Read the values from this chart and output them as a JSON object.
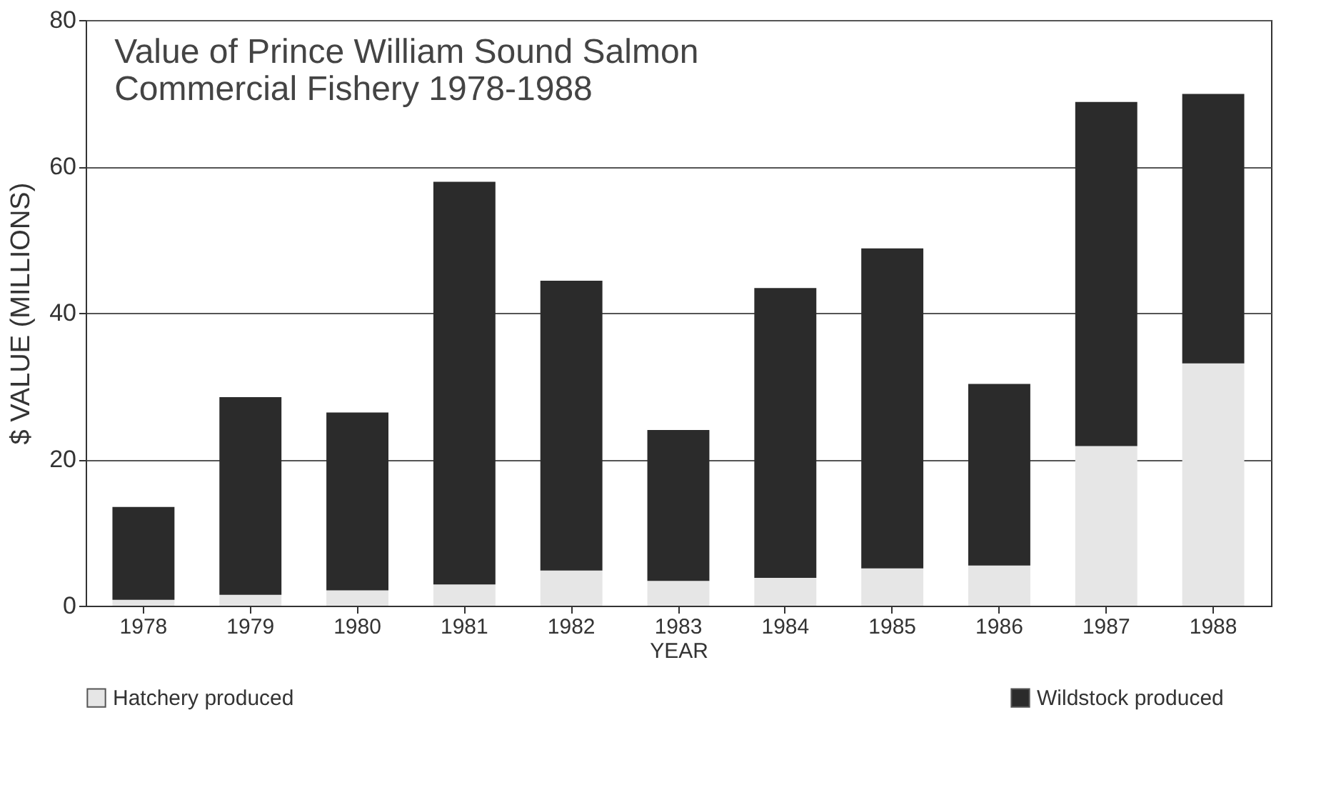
{
  "chart_data": {
    "type": "bar",
    "title": [
      "Value of Prince William Sound Salmon",
      "Commercial Fishery 1978-1988"
    ],
    "xlabel": "YEAR",
    "ylabel": "$ VALUE (MILLIONS)",
    "categories": [
      "1978",
      "1979",
      "1980",
      "1981",
      "1982",
      "1983",
      "1984",
      "1985",
      "1986",
      "1987",
      "1988"
    ],
    "stacked": true,
    "series": [
      {
        "name": "Hatchery produced",
        "color": "#e6e6e6",
        "values": [
          0.8,
          1.5,
          2.1,
          2.9,
          4.8,
          3.4,
          3.8,
          5.1,
          5.5,
          21.8,
          33.1
        ]
      },
      {
        "name": "Wildstock produced",
        "color": "#2b2b2b",
        "values": [
          12.7,
          27.0,
          24.3,
          55.0,
          39.6,
          20.6,
          39.6,
          43.7,
          24.8,
          47.0,
          36.8
        ]
      }
    ],
    "ylim": [
      0,
      80
    ],
    "yticks": [
      0,
      20,
      40,
      60,
      80
    ],
    "grid": "y",
    "legend": "bottom"
  }
}
